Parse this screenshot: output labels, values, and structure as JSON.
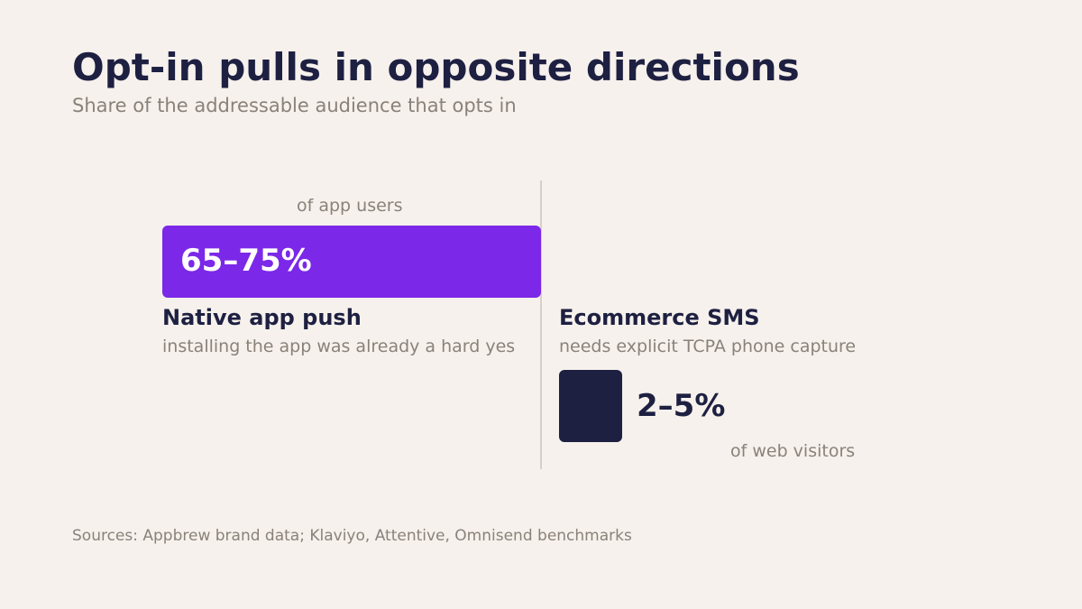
{
  "title": "Opt-in pulls in opposite directions",
  "subtitle": "Share of the addressable audience that opts in",
  "sources": "Sources: Appbrew brand data; Klaviyo, Attentive, Omnisend benchmarks",
  "chart_data": {
    "type": "bar",
    "orientation": "horizontal",
    "series": [
      {
        "name": "Native app push",
        "note": "installing the app was already a hard yes",
        "value_label": "65–75%",
        "unit_label": "of app users",
        "range": [
          65,
          75
        ],
        "color": "#7b28e8"
      },
      {
        "name": "Ecommerce SMS",
        "note": "needs explicit TCPA phone capture",
        "value_label": "2–5%",
        "unit_label": "of web visitors",
        "range": [
          2,
          5
        ],
        "color": "#1e2042"
      }
    ],
    "xlim": [
      0,
      75
    ],
    "grid": false,
    "legend": "none"
  }
}
